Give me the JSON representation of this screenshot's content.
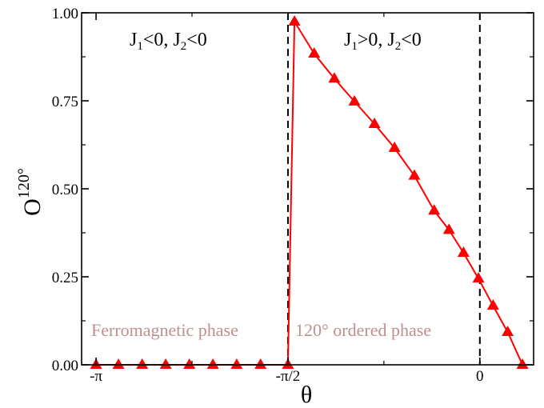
{
  "chart_data": {
    "type": "line",
    "ylabel": "O",
    "ylabel_sup": "120°",
    "xlabel": "θ",
    "ylim": [
      0.0,
      1.0
    ],
    "xlim": [
      -3.26,
      0.44
    ],
    "y_ticks": [
      {
        "value": 0.0,
        "label": "0.00"
      },
      {
        "value": 0.25,
        "label": "0.25"
      },
      {
        "value": 0.5,
        "label": "0.50"
      },
      {
        "value": 0.75,
        "label": "0.75"
      },
      {
        "value": 1.0,
        "label": "1.00"
      }
    ],
    "x_ticks": [
      {
        "value": -3.1416,
        "label": "-π"
      },
      {
        "value": -1.5708,
        "label": "-π/2"
      },
      {
        "value": 0.0,
        "label": "0"
      }
    ],
    "dashed_vlines": [
      -1.5708,
      0.0
    ],
    "colors": {
      "series": "#ff0000",
      "phase_text": "#c09090",
      "axes": "#000000"
    },
    "marker": "triangle",
    "series": [
      {
        "x": [
          -3.1416,
          -2.958,
          -2.7645,
          -2.5714,
          -2.378,
          -2.1852,
          -1.9905,
          -1.7953,
          -1.5708,
          -1.5173,
          -1.3562,
          -1.1909,
          -1.0265,
          -0.8623,
          -0.6984,
          -0.5359,
          -0.3741,
          -0.2524,
          -0.1337,
          -0.0113,
          0.1082,
          0.2276,
          0.3487
        ],
        "y": [
          0.0,
          0.0,
          0.0,
          0.0,
          0.0,
          0.0,
          0.0,
          0.0,
          0.0,
          0.975,
          0.884,
          0.813,
          0.748,
          0.684,
          0.616,
          0.537,
          0.438,
          0.383,
          0.318,
          0.245,
          0.168,
          0.093,
          0.0
        ]
      }
    ],
    "annotations": {
      "left_region": {
        "j1": "J",
        "j1_sub": "1",
        "j1_rel": "<0, ",
        "j2": "J",
        "j2_sub": "2",
        "j2_rel": "<0"
      },
      "right_region": {
        "j1": "J",
        "j1_sub": "1",
        "j1_rel": ">0, ",
        "j2": "J",
        "j2_sub": "2",
        "j2_rel": "<0"
      },
      "ferro_phase": "Ferromagnetic phase",
      "ordered_phase": "120° ordered phase"
    }
  }
}
